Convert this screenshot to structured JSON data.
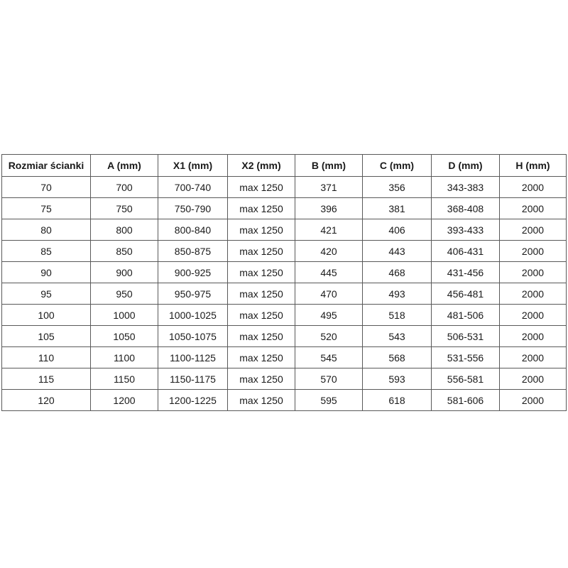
{
  "colors": {
    "background": "#ffffff",
    "border": "#595959",
    "text": "#1a1a1a"
  },
  "chart_data": {
    "type": "table",
    "columns": [
      "Rozmiar ścianki",
      "A (mm)",
      "X1 (mm)",
      "X2 (mm)",
      "B (mm)",
      "C (mm)",
      "D (mm)",
      "H (mm)"
    ],
    "rows": [
      [
        "70",
        "700",
        "700-740",
        "max 1250",
        "371",
        "356",
        "343-383",
        "2000"
      ],
      [
        "75",
        "750",
        "750-790",
        "max 1250",
        "396",
        "381",
        "368-408",
        "2000"
      ],
      [
        "80",
        "800",
        "800-840",
        "max 1250",
        "421",
        "406",
        "393-433",
        "2000"
      ],
      [
        "85",
        "850",
        "850-875",
        "max 1250",
        "420",
        "443",
        "406-431",
        "2000"
      ],
      [
        "90",
        "900",
        "900-925",
        "max 1250",
        "445",
        "468",
        "431-456",
        "2000"
      ],
      [
        "95",
        "950",
        "950-975",
        "max 1250",
        "470",
        "493",
        "456-481",
        "2000"
      ],
      [
        "100",
        "1000",
        "1000-1025",
        "max 1250",
        "495",
        "518",
        "481-506",
        "2000"
      ],
      [
        "105",
        "1050",
        "1050-1075",
        "max 1250",
        "520",
        "543",
        "506-531",
        "2000"
      ],
      [
        "110",
        "1100",
        "1100-1125",
        "max 1250",
        "545",
        "568",
        "531-556",
        "2000"
      ],
      [
        "115",
        "1150",
        "1150-1175",
        "max 1250",
        "570",
        "593",
        "556-581",
        "2000"
      ],
      [
        "120",
        "1200",
        "1200-1225",
        "max 1250",
        "595",
        "618",
        "581-606",
        "2000"
      ]
    ]
  }
}
